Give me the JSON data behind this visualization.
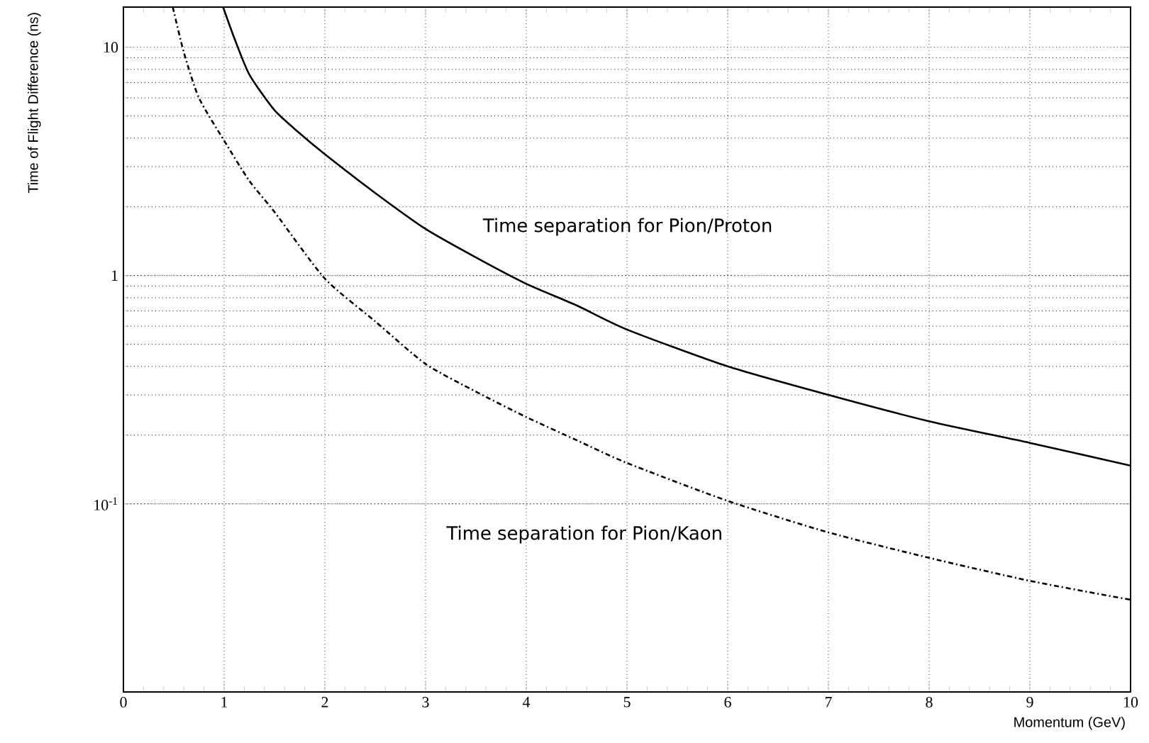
{
  "chart_data": {
    "type": "line",
    "xlabel": "Momentum (GeV)",
    "ylabel": "Time of Flight Difference (ns)",
    "xlim": [
      0,
      10
    ],
    "ylim": [
      0.015,
      15
    ],
    "log": "y",
    "grid": true,
    "xticks": [
      0,
      1,
      2,
      3,
      4,
      5,
      6,
      7,
      8,
      9,
      10
    ],
    "yticks": [
      {
        "value": 0.1,
        "label": "10$^{-1}$"
      },
      1,
      10
    ],
    "series": [
      {
        "name": "Time separation for Pion/Proton",
        "color": "#000000",
        "line_style": "solid",
        "x": [
          0.99,
          1.1,
          1.25,
          1.5,
          1.75,
          2,
          2.5,
          3,
          3.5,
          4,
          4.5,
          5,
          6,
          7,
          8,
          9,
          10
        ],
        "values": [
          15,
          11,
          7.6,
          5.3,
          4.2,
          3.4,
          2.3,
          1.6,
          1.2,
          0.92,
          0.74,
          0.58,
          0.4,
          0.3,
          0.23,
          0.185,
          0.147
        ]
      },
      {
        "name": "Time separation for Pion/Kaon",
        "color": "#000000",
        "line_style": "dashdot",
        "x": [
          0.49,
          0.6,
          0.75,
          1,
          1.25,
          1.5,
          2,
          2.5,
          3,
          3.5,
          4,
          4.5,
          5,
          6,
          7,
          8,
          9,
          10
        ],
        "values": [
          15,
          9.5,
          6,
          3.9,
          2.6,
          1.9,
          0.97,
          0.63,
          0.41,
          0.31,
          0.24,
          0.19,
          0.151,
          0.103,
          0.075,
          0.058,
          0.046,
          0.038
        ]
      }
    ]
  }
}
